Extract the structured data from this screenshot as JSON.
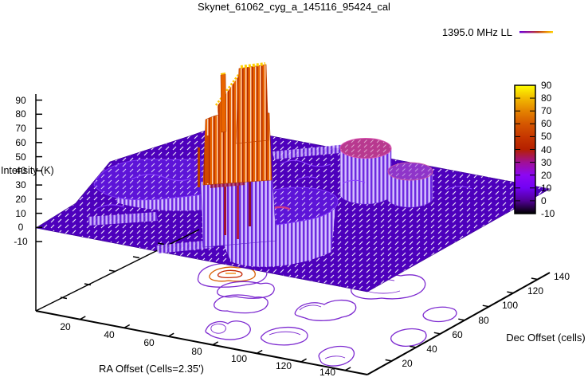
{
  "title": "Skynet_61062_cyg_a_145116_95424_cal",
  "legend": {
    "series_label": "1395.0 MHz LL"
  },
  "axes": {
    "x": {
      "label": "RA Offset (Cells=2.35')",
      "ticks": [
        "20",
        "40",
        "60",
        "80",
        "100",
        "120",
        "140"
      ]
    },
    "y": {
      "label": "Dec Offset (cells)",
      "ticks": [
        "20",
        "40",
        "60",
        "80",
        "100",
        "120",
        "140"
      ]
    },
    "z": {
      "label": "Intensity (K)",
      "ticks": [
        "90",
        "80",
        "70",
        "60",
        "50",
        "40",
        "30",
        "20",
        "10",
        "0",
        "-10"
      ]
    }
  },
  "colorbar": {
    "min": -10,
    "max": 90,
    "ticks": [
      "90",
      "80",
      "70",
      "60",
      "50",
      "40",
      "30",
      "20",
      "10",
      "0",
      "-10"
    ],
    "palette_top_to_bottom": [
      "#ffff00",
      "#f2ba00",
      "#e48300",
      "#d55700",
      "#c63700",
      "#b52000",
      "#a11096",
      "#8c07f3",
      "#7202f3",
      "#510096",
      "#000000"
    ]
  },
  "chart_data": {
    "type": "surface",
    "plot_style": "gnuplot 3D mesh (pm3d palette) with contours projected on the base plane",
    "title": "Skynet_61062_cyg_a_145116_95424_cal",
    "series": [
      {
        "name": "1395.0 MHz LL"
      }
    ],
    "xlabel": "RA Offset (Cells=2.35')",
    "ylabel": "Dec Offset (cells)",
    "zlabel": "Intensity (K)",
    "xlim": [
      0,
      150
    ],
    "ylim": [
      0,
      150
    ],
    "zlim": [
      -10,
      90
    ],
    "xticks": [
      20,
      40,
      60,
      80,
      100,
      120,
      140
    ],
    "yticks": [
      20,
      40,
      60,
      80,
      100,
      120,
      140
    ],
    "zticks": [
      -10,
      0,
      10,
      20,
      30,
      40,
      50,
      60,
      70,
      80,
      90
    ],
    "colorbar_range": [
      -10,
      90
    ],
    "baseline_intensity_K": 0,
    "features": [
      {
        "name": "main peak column (orange/yellow)",
        "ra_cells": 50,
        "dec_cells": 84,
        "peak_K": 90
      },
      {
        "name": "secondary spike on peak shoulder",
        "ra_cells": 46,
        "dec_cells": 76,
        "peak_K": 60
      },
      {
        "name": "left low plateau",
        "ra_cells": 28,
        "dec_cells": 56,
        "peak_K": 15
      },
      {
        "name": "central front mound",
        "ra_cells": 83,
        "dec_cells": 45,
        "peak_K": 20
      },
      {
        "name": "right tower (pink top)",
        "ra_cells": 97,
        "dec_cells": 95,
        "peak_K": 40
      },
      {
        "name": "right mound (violet/pink top)",
        "ra_cells": 118,
        "dec_cells": 94,
        "peak_K": 30
      }
    ],
    "contours_projected_on_base": true,
    "legend_position": "top-right",
    "grid": false
  }
}
